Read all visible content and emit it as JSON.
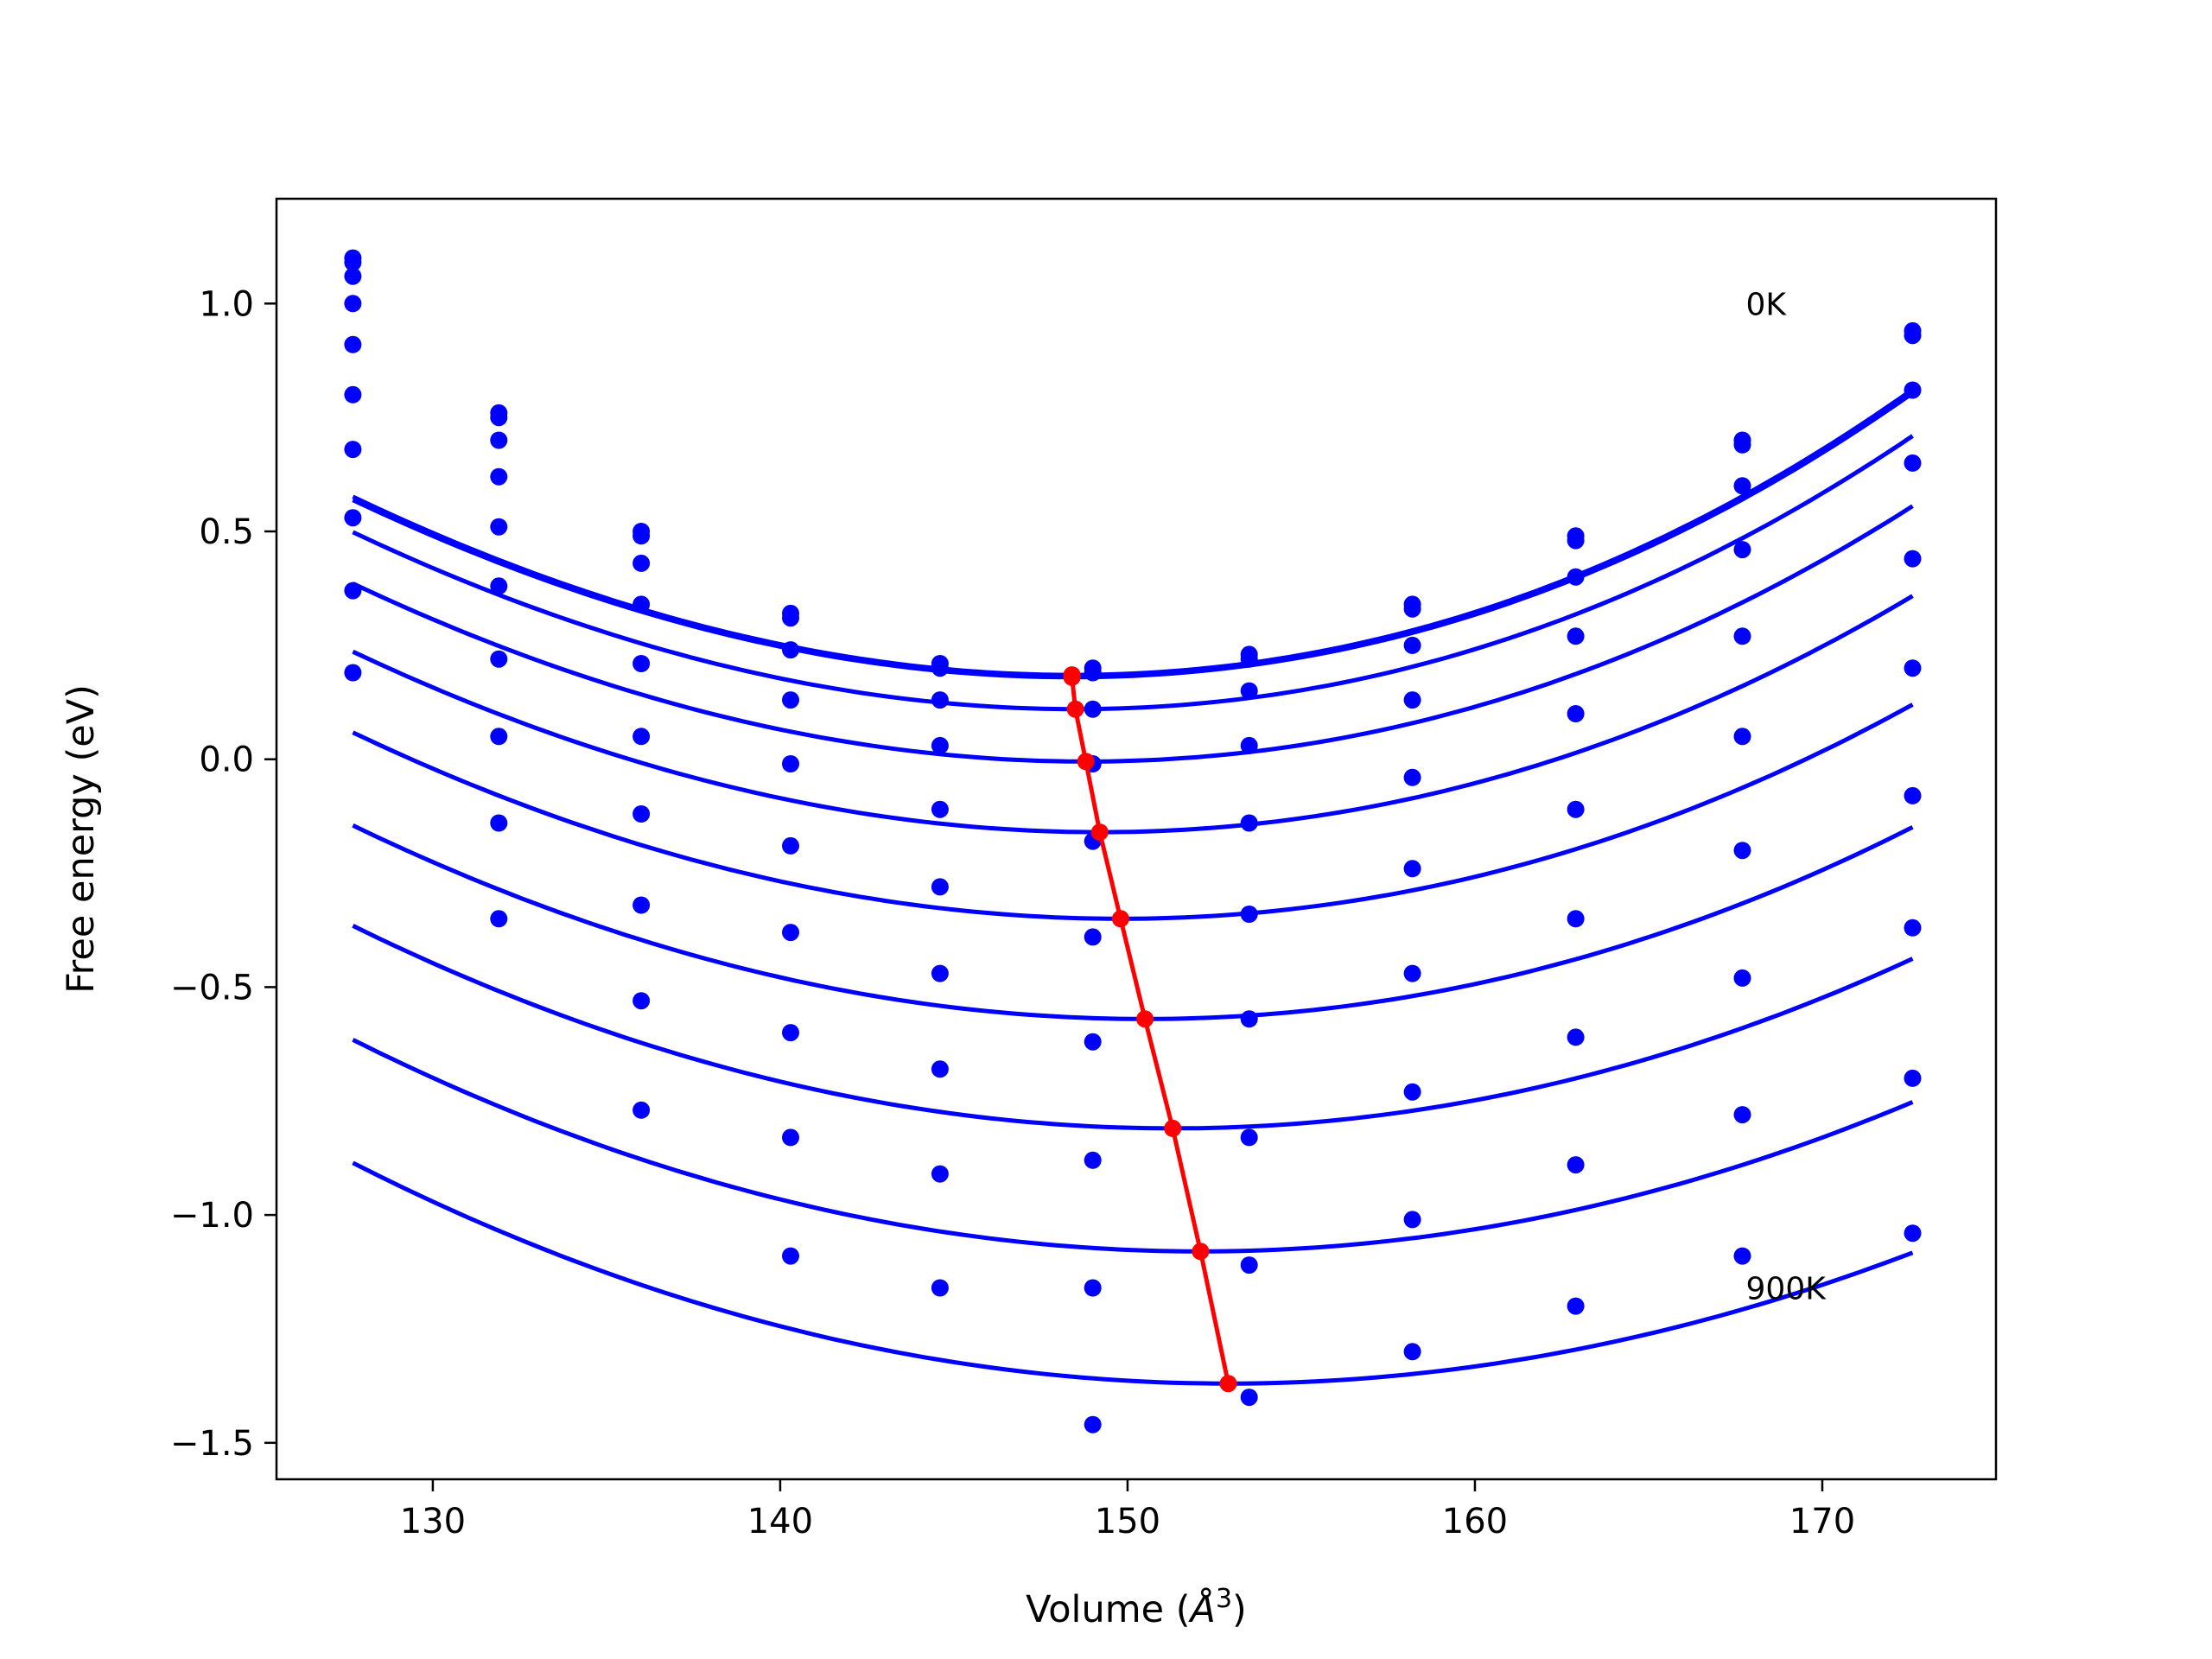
{
  "chart_data": {
    "type": "scatter",
    "title": "",
    "xlabel": "Volume (",
    "xlabel_unit": "Å",
    "xlabel_exp": "3",
    "xlabel_close": ")",
    "ylabel": "Free energy (eV)",
    "xlim": [
      125.5,
      175
    ],
    "ylim": [
      -1.58,
      1.23
    ],
    "xticks": [
      130,
      140,
      150,
      160,
      170
    ],
    "yticks": [
      1.0,
      0.5,
      0.0,
      -0.5,
      -1.0,
      -1.5
    ],
    "xtick_labels": [
      "130",
      "140",
      "150",
      "160",
      "170"
    ],
    "ytick_labels": [
      "1.0",
      "0.5",
      "0.0",
      "−0.5",
      "−1.0",
      "−1.5"
    ],
    "grid": false,
    "annotations": [
      {
        "text": "0K",
        "x": 167.8,
        "y": 1.0
      },
      {
        "text": "900K",
        "x": 167.8,
        "y": -1.16
      }
    ],
    "x": [
      127.7,
      131.9,
      136.0,
      140.3,
      144.6,
      149.0,
      153.5,
      158.2,
      162.9,
      167.7,
      172.6
    ],
    "fit_x_range": [
      127.7,
      172.6
    ],
    "series": [
      {
        "values": [
          1.1,
          0.76,
          0.5,
          0.32,
          0.21,
          0.2,
          0.23,
          0.34,
          0.49,
          0.7,
          0.94
        ],
        "fit": {
          "vmin": 148.4,
          "emin": 0.185,
          "b": 0.000985,
          "c": 3.5e-06
        }
      },
      {
        "values": [
          1.09,
          0.75,
          0.49,
          0.31,
          0.2,
          0.19,
          0.22,
          0.33,
          0.48,
          0.69,
          0.93
        ],
        "fit": {
          "vmin": 148.4,
          "emin": 0.18,
          "b": 0.00098,
          "c": 3.5e-06
        }
      },
      {
        "values": [
          1.06,
          0.7,
          0.43,
          0.24,
          0.13,
          0.11,
          0.15,
          0.25,
          0.4,
          0.6,
          0.81
        ],
        "fit": {
          "vmin": 148.5,
          "emin": 0.11,
          "b": 0.00096,
          "c": 3e-06
        }
      },
      {
        "values": [
          1.0,
          0.62,
          0.34,
          0.13,
          0.03,
          -0.01,
          0.03,
          0.13,
          0.27,
          0.46,
          0.65
        ],
        "fit": {
          "vmin": 148.8,
          "emin": -0.005,
          "b": 0.00093,
          "c": 2.5e-06
        }
      },
      {
        "values": [
          0.91,
          0.51,
          0.21,
          -0.01,
          -0.11,
          -0.18,
          -0.14,
          -0.04,
          0.1,
          0.27,
          0.44
        ],
        "fit": {
          "vmin": 149.2,
          "emin": -0.16,
          "b": 0.0009,
          "c": 2e-06
        }
      },
      {
        "values": [
          0.8,
          0.38,
          0.05,
          -0.19,
          -0.28,
          -0.39,
          -0.34,
          -0.24,
          -0.11,
          0.05,
          0.2
        ],
        "fit": {
          "vmin": 149.8,
          "emin": -0.35,
          "b": 0.00087,
          "c": 1.5e-06
        }
      },
      {
        "values": [
          0.68,
          0.22,
          -0.12,
          -0.38,
          -0.47,
          -0.62,
          -0.57,
          -0.47,
          -0.35,
          -0.2,
          -0.08
        ],
        "fit": {
          "vmin": 150.5,
          "emin": -0.57,
          "b": 0.00084,
          "c": 1e-06
        }
      },
      {
        "values": [
          0.53,
          0.05,
          -0.32,
          -0.6,
          -0.68,
          -0.88,
          -0.83,
          -0.73,
          -0.61,
          -0.48,
          -0.37
        ],
        "fit": {
          "vmin": 151.3,
          "emin": -0.81,
          "b": 0.00081,
          "c": 5e-07
        }
      },
      {
        "values": [
          0.37,
          -0.14,
          -0.53,
          -0.83,
          -0.91,
          -1.16,
          -1.11,
          -1.01,
          -0.89,
          -0.78,
          -0.7
        ],
        "fit": {
          "vmin": 152.1,
          "emin": -1.08,
          "b": 0.00078,
          "c": 0.0
        }
      },
      {
        "values": [
          0.19,
          -0.35,
          -0.77,
          -1.09,
          -1.16,
          -1.46,
          -1.4,
          -1.3,
          -1.2,
          -1.09,
          -1.04
        ],
        "fit": {
          "vmin": 152.9,
          "emin": -1.37,
          "b": 0.00075,
          "c": -5e-07
        }
      }
    ],
    "minima_line": {
      "x": [
        148.4,
        148.4,
        148.5,
        148.8,
        149.2,
        149.8,
        150.5,
        151.3,
        152.1,
        152.9
      ],
      "y": [
        0.185,
        0.18,
        0.11,
        -0.005,
        -0.16,
        -0.35,
        -0.57,
        -0.81,
        -1.08,
        -1.37
      ]
    },
    "colors": {
      "series": "#0000ff",
      "minima": "#ff0000",
      "axes": "#000000"
    }
  }
}
